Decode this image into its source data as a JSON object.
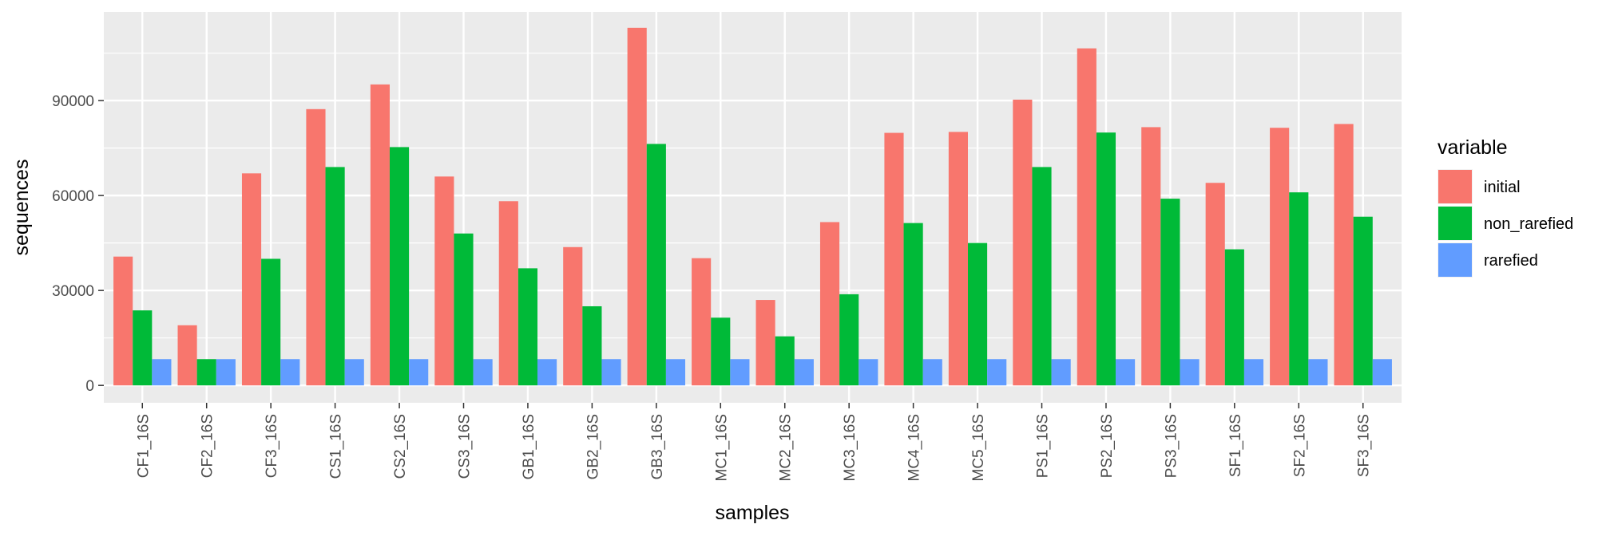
{
  "chart_data": {
    "type": "bar",
    "title": "",
    "xlabel": "samples",
    "ylabel": "sequences",
    "ylim": [
      -5500,
      118000
    ],
    "yticks": [
      0,
      30000,
      60000,
      90000
    ],
    "ytick_labels": [
      "0",
      "30000",
      "60000",
      "90000"
    ],
    "grid": true,
    "legend_position": "right",
    "legend_title": "variable",
    "categories": [
      "CF1_16S",
      "CF2_16S",
      "CF3_16S",
      "CS1_16S",
      "CS2_16S",
      "CS3_16S",
      "GB1_16S",
      "GB2_16S",
      "GB3_16S",
      "MC1_16S",
      "MC2_16S",
      "MC3_16S",
      "MC4_16S",
      "MC5_16S",
      "PS1_16S",
      "PS2_16S",
      "PS3_16S",
      "SF1_16S",
      "SF2_16S",
      "SF3_16S"
    ],
    "series": [
      {
        "name": "initial",
        "color": "#F8766D",
        "values": [
          40700,
          19000,
          67000,
          87300,
          95100,
          66000,
          58200,
          43700,
          113000,
          40200,
          27000,
          51600,
          79800,
          80100,
          90300,
          106500,
          81600,
          64000,
          81400,
          82600
        ]
      },
      {
        "name": "non_rarefied",
        "color": "#00BA38",
        "values": [
          23700,
          8300,
          40000,
          69000,
          75300,
          48000,
          37000,
          25000,
          76300,
          21400,
          15500,
          28800,
          51300,
          45000,
          69000,
          79900,
          59000,
          43000,
          61000,
          53300
        ]
      },
      {
        "name": "rarefied",
        "color": "#619CFF",
        "values": [
          8300,
          8300,
          8300,
          8300,
          8300,
          8300,
          8300,
          8300,
          8300,
          8300,
          8300,
          8300,
          8300,
          8300,
          8300,
          8300,
          8300,
          8300,
          8300,
          8300
        ]
      }
    ]
  }
}
